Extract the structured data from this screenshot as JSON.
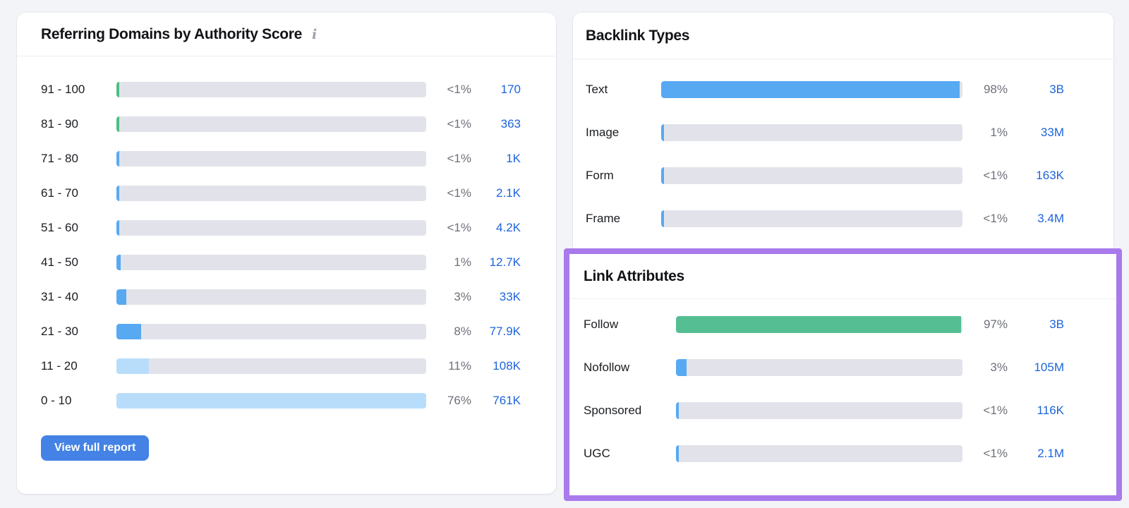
{
  "colors": {
    "page_bg": "#F3F4F7",
    "card_bg": "#FFFFFF",
    "title": "#121317",
    "label": "#1A1C20",
    "percent": "#6E7079",
    "link": "#1D64DB",
    "track": "#E2E3EA",
    "divider": "#EEEFF2",
    "info": "#9CA1AC",
    "button": "#4483E5",
    "button_text": "#FFFFFF",
    "highlight": "#A97AEC",
    "blue_bar": "#57A9F2",
    "light_blue_bar": "#B8DDFB",
    "green_tick": "#4CBE85",
    "green_bar": "#55BE93"
  },
  "left_card": {
    "title": "Referring Domains by Authority Score",
    "info_icon": "i",
    "button": "View full report",
    "rows": [
      {
        "label": "91 - 100",
        "fill_pct": 0.9,
        "fill_color": "#4CBE85",
        "percent": "<1%",
        "value": "170"
      },
      {
        "label": "81 - 90",
        "fill_pct": 0.9,
        "fill_color": "#4CBE85",
        "percent": "<1%",
        "value": "363"
      },
      {
        "label": "71 - 80",
        "fill_pct": 0.9,
        "fill_color": "#57A9F2",
        "percent": "<1%",
        "value": "1K"
      },
      {
        "label": "61 - 70",
        "fill_pct": 0.9,
        "fill_color": "#57A9F2",
        "percent": "<1%",
        "value": "2.1K"
      },
      {
        "label": "51 - 60",
        "fill_pct": 0.9,
        "fill_color": "#57A9F2",
        "percent": "<1%",
        "value": "4.2K"
      },
      {
        "label": "41 - 50",
        "fill_pct": 1.4,
        "fill_color": "#57A9F2",
        "percent": "1%",
        "value": "12.7K"
      },
      {
        "label": "31 - 40",
        "fill_pct": 3.2,
        "fill_color": "#57A9F2",
        "percent": "3%",
        "value": "33K"
      },
      {
        "label": "21 - 30",
        "fill_pct": 8,
        "fill_color": "#57A9F2",
        "percent": "8%",
        "value": "77.9K"
      },
      {
        "label": "11 - 20",
        "fill_pct": 10.5,
        "fill_color": "#B8DDFB",
        "percent": "11%",
        "value": "108K"
      },
      {
        "label": "0 - 10",
        "fill_pct": 100,
        "fill_color": "#B8DDFB",
        "percent": "76%",
        "value": "761K"
      }
    ]
  },
  "backlink_types": {
    "title": "Backlink Types",
    "rows": [
      {
        "label": "Text",
        "fill_pct": 99,
        "fill_color": "#57A9F2",
        "percent": "98%",
        "value": "3B"
      },
      {
        "label": "Image",
        "fill_pct": 1,
        "fill_color": "#57A9F2",
        "percent": "1%",
        "value": "33M"
      },
      {
        "label": "Form",
        "fill_pct": 0.8,
        "fill_color": "#57A9F2",
        "percent": "<1%",
        "value": "163K"
      },
      {
        "label": "Frame",
        "fill_pct": 0.8,
        "fill_color": "#57A9F2",
        "percent": "<1%",
        "value": "3.4M"
      }
    ]
  },
  "link_attributes": {
    "title": "Link Attributes",
    "rows": [
      {
        "label": "Follow",
        "fill_pct": 99.5,
        "fill_color": "#55BE93",
        "percent": "97%",
        "value": "3B"
      },
      {
        "label": "Nofollow",
        "fill_pct": 3.6,
        "fill_color": "#57A9F2",
        "percent": "3%",
        "value": "105M"
      },
      {
        "label": "Sponsored",
        "fill_pct": 0.8,
        "fill_color": "#57A9F2",
        "percent": "<1%",
        "value": "116K"
      },
      {
        "label": "UGC",
        "fill_pct": 0.8,
        "fill_color": "#57A9F2",
        "percent": "<1%",
        "value": "2.1M"
      }
    ]
  }
}
